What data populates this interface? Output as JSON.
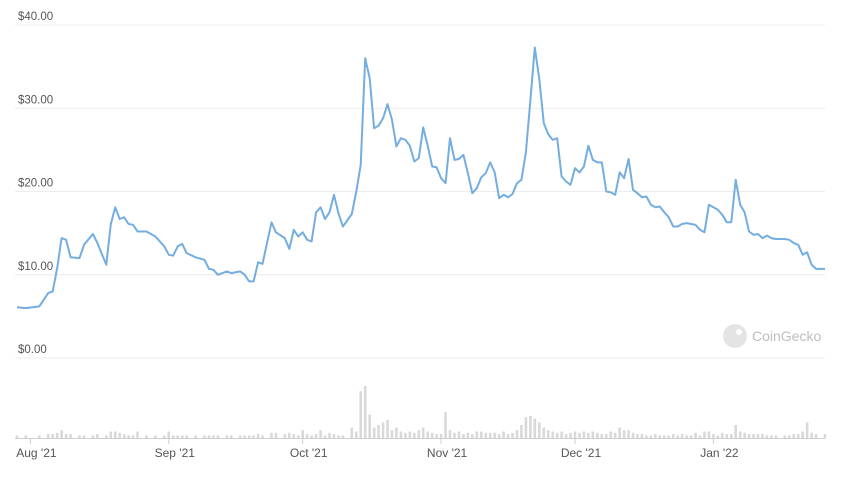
{
  "chart_data": {
    "type": "line",
    "x": [
      -3,
      -1,
      2,
      4,
      5,
      6,
      7,
      8,
      9,
      11,
      12,
      14,
      15,
      17,
      18,
      19,
      20,
      21,
      22,
      23,
      24,
      26,
      28,
      30,
      31,
      32,
      33,
      34,
      35,
      37,
      39,
      40,
      41,
      42,
      44,
      45,
      47,
      48,
      49,
      50,
      51,
      52,
      54,
      55,
      57,
      58,
      59,
      60,
      61,
      62,
      63,
      64,
      65,
      66,
      67,
      68,
      69,
      70,
      72,
      73,
      74,
      75,
      76,
      77,
      78,
      79,
      80,
      81,
      82,
      83,
      84,
      85,
      86,
      87,
      88,
      89,
      90,
      91,
      92,
      93,
      94,
      95,
      96,
      97,
      98,
      99,
      100,
      101,
      102,
      103,
      104,
      105,
      106,
      107,
      108,
      109,
      110,
      111,
      112,
      113,
      114,
      115,
      116,
      117,
      118,
      119,
      120,
      121,
      122,
      123,
      124,
      125,
      126,
      127,
      128,
      129,
      130,
      131,
      132,
      133,
      134,
      135,
      136,
      137,
      138,
      139,
      140,
      141,
      142,
      143,
      144,
      145,
      146,
      147,
      148,
      149,
      150,
      151,
      152,
      153,
      154,
      155,
      156,
      157,
      158,
      159,
      160,
      161,
      162,
      163,
      164,
      165,
      166,
      167,
      169,
      170,
      171,
      172,
      173,
      174,
      175,
      176,
      178
    ],
    "series": [
      {
        "color": "#74addf",
        "values": [
          6.1,
          6.0,
          6.2,
          7.8,
          8.0,
          10.8,
          14.4,
          14.2,
          12.1,
          12.0,
          13.6,
          14.9,
          13.8,
          11.2,
          16.0,
          18.1,
          16.7,
          16.9,
          16.1,
          16.0,
          15.2,
          15.2,
          14.6,
          13.4,
          12.4,
          12.3,
          13.4,
          13.7,
          12.6,
          12.1,
          11.8,
          10.7,
          10.6,
          10.0,
          10.4,
          10.2,
          10.4,
          10.0,
          9.2,
          9.2,
          11.5,
          11.3,
          16.3,
          15.1,
          14.4,
          13.1,
          15.4,
          14.6,
          15.1,
          14.2,
          14.0,
          17.5,
          18.1,
          16.7,
          17.5,
          19.6,
          17.4,
          15.8,
          17.3,
          20.0,
          23.2,
          36.0,
          33.6,
          27.6,
          27.9,
          28.8,
          30.5,
          28.6,
          25.4,
          26.4,
          26.2,
          25.5,
          23.6,
          24.0,
          27.7,
          25.5,
          23.0,
          22.9,
          21.6,
          21.0,
          26.4,
          23.8,
          23.9,
          24.4,
          22.2,
          19.8,
          20.4,
          21.7,
          22.2,
          23.5,
          22.3,
          19.2,
          19.6,
          19.3,
          19.7,
          21.0,
          21.4,
          24.7,
          31.0,
          37.3,
          33.5,
          28.2,
          26.9,
          26.2,
          26.4,
          21.8,
          21.2,
          20.8,
          22.8,
          22.3,
          23.0,
          25.5,
          23.8,
          23.5,
          23.5,
          20.0,
          19.9,
          19.6,
          22.3,
          21.6,
          23.9,
          20.2,
          19.8,
          19.3,
          19.4,
          18.4,
          18.1,
          18.2,
          17.5,
          16.9,
          15.8,
          15.8,
          16.1,
          16.2,
          16.1,
          16.0,
          15.4,
          15.1,
          18.4,
          18.1,
          17.8,
          17.2,
          16.3,
          16.3,
          21.4,
          18.4,
          17.5,
          15.2,
          14.8,
          14.9,
          14.4,
          14.7,
          14.4,
          14.3,
          14.3,
          14.2,
          13.8,
          13.6,
          12.4,
          12.7,
          11.2,
          10.7,
          10.7
        ]
      },
      {
        "color": "#d9d9d9",
        "axis": "y2",
        "values": [
          2,
          2,
          2,
          3,
          3,
          4,
          6,
          3,
          3,
          2,
          2,
          2,
          3,
          2,
          5,
          5,
          4,
          3,
          2,
          2,
          5,
          2,
          2,
          2,
          5,
          2,
          2,
          2,
          2,
          2,
          2,
          2,
          2,
          2,
          2,
          2,
          2,
          2,
          2,
          2,
          3,
          2,
          4,
          4,
          3,
          4,
          3,
          2,
          6,
          3,
          2,
          3,
          6,
          2,
          4,
          3,
          2,
          2,
          8,
          5,
          36,
          40,
          18,
          8,
          10,
          12,
          14,
          6,
          8,
          5,
          4,
          5,
          4,
          6,
          8,
          5,
          4,
          3,
          3,
          20,
          6,
          4,
          5,
          3,
          4,
          3,
          5,
          5,
          4,
          4,
          4,
          3,
          5,
          3,
          4,
          6,
          10,
          16,
          17,
          15,
          12,
          8,
          6,
          5,
          4,
          5,
          3,
          4,
          5,
          4,
          5,
          4,
          5,
          4,
          3,
          3,
          5,
          4,
          8,
          6,
          6,
          4,
          3,
          3,
          2,
          2,
          3,
          2,
          2,
          2,
          3,
          2,
          3,
          2,
          2,
          4,
          2,
          5,
          5,
          3,
          2,
          4,
          3,
          3,
          10,
          5,
          4,
          3,
          3,
          3,
          3,
          2,
          2,
          2,
          2,
          2,
          3,
          3,
          5,
          12,
          4,
          3,
          3
        ]
      }
    ],
    "xlim": [
      -3,
      178
    ],
    "xticks": [
      {
        "value": 0,
        "label": "Aug '21"
      },
      {
        "value": 31,
        "label": "Sep '21"
      },
      {
        "value": 61,
        "label": "Oct '21"
      },
      {
        "value": 92,
        "label": "Nov '21"
      },
      {
        "value": 122,
        "label": "Dec '21"
      },
      {
        "value": 153,
        "label": "Jan '22"
      }
    ],
    "ylim": [
      0,
      40
    ],
    "yticks": [
      {
        "value": 0,
        "label": "$0.00"
      },
      {
        "value": 10,
        "label": "$10.00"
      },
      {
        "value": 20,
        "label": "$20.00"
      },
      {
        "value": 30,
        "label": "$30.00"
      },
      {
        "value": 40,
        "label": "$40.00"
      }
    ],
    "y2lim": [
      0,
      40
    ],
    "grid": true,
    "watermark": "CoinGecko"
  }
}
